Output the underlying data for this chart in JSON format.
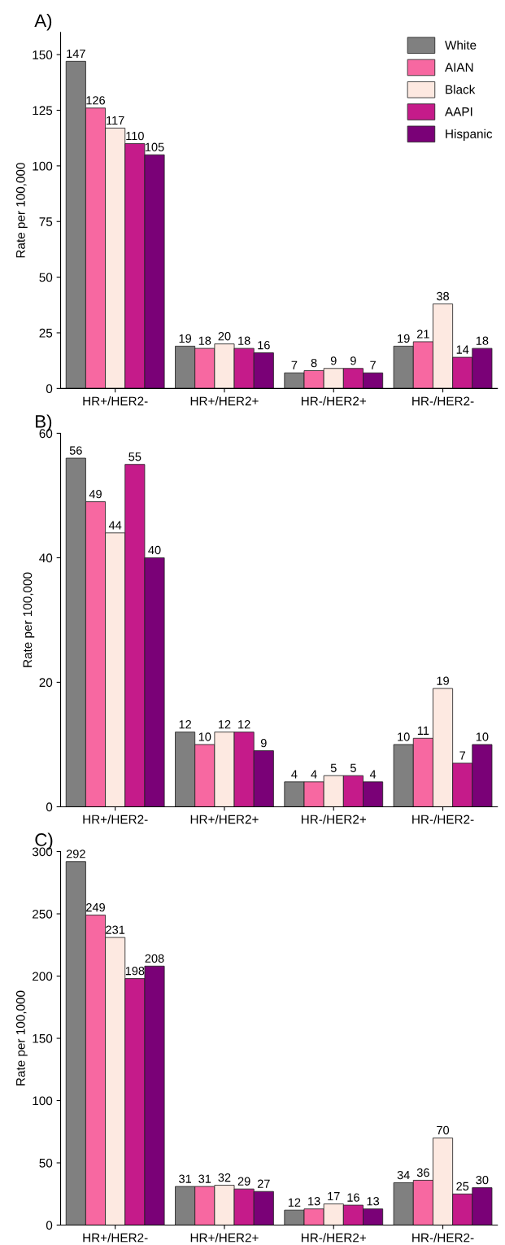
{
  "chart_data": [
    {
      "type": "bar",
      "title": "A)",
      "ylabel": "Rate per 100,000",
      "categories": [
        "HR+/HER2-",
        "HR+/HER2+",
        "HR-/HER2+",
        "HR-/HER2-"
      ],
      "series": [
        {
          "name": "White",
          "color": "#808080",
          "values": [
            147,
            19,
            7,
            19
          ]
        },
        {
          "name": "AIAN",
          "color": "#f768a1",
          "values": [
            126,
            18,
            8,
            21
          ]
        },
        {
          "name": "Black",
          "color": "#fde9e1",
          "values": [
            117,
            20,
            9,
            38
          ]
        },
        {
          "name": "AAPI",
          "color": "#c51b8a",
          "values": [
            110,
            18,
            9,
            14
          ]
        },
        {
          "name": "Hispanic",
          "color": "#7a0177",
          "values": [
            105,
            16,
            7,
            18
          ]
        }
      ],
      "ylim": [
        0,
        160
      ],
      "yticks": [
        0,
        25,
        50,
        75,
        100,
        125,
        150
      ],
      "data_labels": true,
      "legend": "top right",
      "grid": false
    },
    {
      "type": "bar",
      "title": "B)",
      "ylabel": "Rate per 100,000",
      "categories": [
        "HR+/HER2-",
        "HR+/HER2+",
        "HR-/HER2+",
        "HR-/HER2-"
      ],
      "series": [
        {
          "color": "#808080",
          "values": [
            56,
            12,
            4,
            10
          ]
        },
        {
          "color": "#f768a1",
          "values": [
            49,
            10,
            4,
            11
          ]
        },
        {
          "color": "#fde9e1",
          "values": [
            44,
            12,
            5,
            19
          ]
        },
        {
          "color": "#c51b8a",
          "values": [
            55,
            12,
            5,
            7
          ]
        },
        {
          "color": "#7a0177",
          "values": [
            40,
            9,
            4,
            10
          ]
        }
      ],
      "ylim": [
        0,
        60
      ],
      "yticks": [
        0,
        20,
        40,
        60
      ],
      "data_labels": true,
      "grid": false
    },
    {
      "type": "bar",
      "title": "C)",
      "ylabel": "Rate per 100,000",
      "categories": [
        "HR+/HER2-",
        "HR+/HER2+",
        "HR-/HER2+",
        "HR-/HER2-"
      ],
      "series": [
        {
          "color": "#808080",
          "values": [
            292,
            31,
            12,
            34
          ]
        },
        {
          "color": "#f768a1",
          "values": [
            249,
            31,
            13,
            36
          ]
        },
        {
          "color": "#fde9e1",
          "values": [
            231,
            32,
            17,
            70
          ]
        },
        {
          "color": "#c51b8a",
          "values": [
            198,
            29,
            16,
            25
          ]
        },
        {
          "color": "#7a0177",
          "values": [
            208,
            27,
            13,
            30
          ]
        }
      ],
      "ylim": [
        0,
        300
      ],
      "yticks": [
        0,
        50,
        100,
        150,
        200,
        250,
        300
      ],
      "data_labels": true,
      "grid": false
    }
  ]
}
